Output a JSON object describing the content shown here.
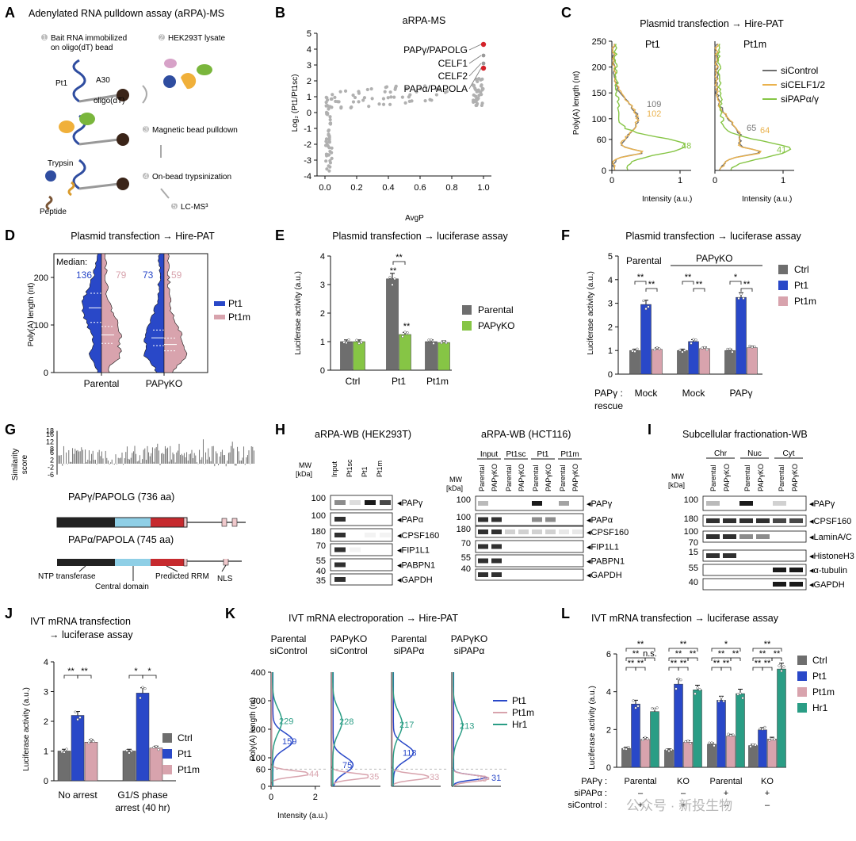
{
  "colors": {
    "blue": "#2948c8",
    "pink": "#d8a3ad",
    "green": "#7ab63c",
    "gray": "#6e6e6e",
    "orange": "#eab24d",
    "teal": "#2a9d85",
    "ltgreen": "#86c545",
    "red": "#d4222a"
  },
  "panelA": {
    "letter": "A",
    "title": "Adenylated RNA pulldown assay (aRPA)-MS",
    "steps": [
      "Bait RNA immobilized",
      "on oligo(dT) bead",
      "HEK293T lysate",
      "Magnetic bead pulldown",
      "On-bead trypsinization",
      "LC-MS³"
    ],
    "nums": [
      "1",
      "2",
      "3",
      "4",
      "5"
    ],
    "labels": {
      "pt1": "Pt1",
      "a30": "A30",
      "oligo": "oligo(dT)",
      "trypsin": "Trypsin",
      "peptide": "Peptide"
    }
  },
  "panelB": {
    "letter": "B",
    "title": "aRPA-MS",
    "xlabel": "AvgP",
    "ylabel": "Log₂ (Pt1/Pt1sc)",
    "annotations": [
      "PAPγ/PAPOLG",
      "CELF1",
      "CELF2",
      "PAPα/PAPOLA"
    ]
  },
  "panelC": {
    "letter": "C",
    "title": "Plasmid transfection → Hire-PAT",
    "sub1": "Pt1",
    "sub2": "Pt1m",
    "ylabel": "Poly(A) length (nt)",
    "xlabel": "Intensity (a.u.)",
    "legend": [
      "siControl",
      "siCELF1/2",
      "siPAPα/γ"
    ],
    "ann1": [
      "109",
      "102",
      "48"
    ],
    "ann2": [
      "65",
      "64",
      "41"
    ]
  },
  "panelD": {
    "letter": "D",
    "title": "Plasmid transfection → Hire-PAT",
    "ylabel": "Poly(A) length (nt)",
    "median_label": "Median:",
    "medians": [
      "136",
      "79",
      "73",
      "59"
    ],
    "legend": [
      "Pt1",
      "Pt1m"
    ]
  },
  "panelE": {
    "letter": "E",
    "title": "Plasmid transfection → luciferase assay",
    "ylabel": "Luciferase activity (a.u.)",
    "legend": [
      "Parental",
      "PAPγKO"
    ],
    "stars": "**"
  },
  "panelF": {
    "letter": "F",
    "title": "Plasmid transfection → luciferase assay",
    "ylabel": "Luciferase activity (a.u.)",
    "groups": [
      "Parental",
      "PAPγKO"
    ],
    "rescue_label": "PAPγ :",
    "rescue_label2": "rescue",
    "legend": [
      "Ctrl",
      "Pt1",
      "Pt1m"
    ],
    "stars": "**",
    "star1": "*"
  },
  "panelG": {
    "letter": "G",
    "ylabel": "Similarity score",
    "prot1": "PAPγ/PAPOLG (736 aa)",
    "prot2": "PAPα/PAPOLA (745 aa)",
    "domains": [
      "NTP transferase",
      "Central domain",
      "Predicted RRM",
      "NLS"
    ]
  },
  "panelH": {
    "letter": "H",
    "title1": "aRPA-WB (HEK293T)",
    "title2": "aRPA-WB (HCT116)",
    "mw": "MW",
    "kda": "[kDa]",
    "lanes1": [
      "Input",
      "Pt1sc",
      "Pt1",
      "Pt1m"
    ],
    "groups2": [
      "Input",
      "Pt1sc",
      "Pt1",
      "Pt1m"
    ],
    "lanes2": [
      "Parental",
      "PAPγKO"
    ],
    "proteins": [
      "PAPγ",
      "PAPα",
      "CPSF160",
      "FIP1L1",
      "PABPN1",
      "GAPDH"
    ],
    "markers1": [
      "100",
      "100",
      "180",
      "70",
      "55",
      "40",
      "35"
    ],
    "markers2": [
      "100",
      "100",
      "180",
      "70",
      "55",
      "40"
    ]
  },
  "panelI": {
    "letter": "I",
    "title": "Subcellular fractionation-WB",
    "mw": "MW",
    "kda": "[kDa]",
    "groups": [
      "Chr",
      "Nuc",
      "Cyt"
    ],
    "lanes": [
      "Parental",
      "PAPγKO"
    ],
    "proteins": [
      "PAPγ",
      "CPSF160",
      "LaminA/C",
      "HistoneH3",
      "α-tubulin",
      "GAPDH"
    ],
    "markers": [
      "100",
      "180",
      "100",
      "70",
      "15",
      "55",
      "40"
    ]
  },
  "panelJ": {
    "letter": "J",
    "title1": "IVT mRNA transfection",
    "title2": "→ luciferase assay",
    "ylabel": "Luciferase activity (a.u.)",
    "groups": [
      "No arrest",
      "G1/S phase",
      "arrest (40 hr)"
    ],
    "legend": [
      "Ctrl",
      "Pt1",
      "Pt1m"
    ],
    "stars": "**",
    "star1": "*"
  },
  "panelK": {
    "letter": "K",
    "title": "IVT mRNA electroporation → Hire-PAT",
    "ylabel": "Poly(A) length (nt)",
    "xlabel": "Intensity (a.u.)",
    "subs": [
      [
        "Parental",
        "siControl"
      ],
      [
        "PAPγKO",
        "siControl"
      ],
      [
        "Parental",
        "siPAPα"
      ],
      [
        "PAPγKO",
        "siPAPα"
      ]
    ],
    "legend": [
      "Pt1",
      "Pt1m",
      "Hr1"
    ],
    "ann": [
      [
        "229",
        "159",
        "44"
      ],
      [
        "228",
        "75",
        "35"
      ],
      [
        "217",
        "118",
        "33"
      ],
      [
        "213",
        "31",
        "28"
      ]
    ]
  },
  "panelL": {
    "letter": "L",
    "title": "IVT mRNA transfection → luciferase assay",
    "ylabel": "Luciferase activity (a.u.)",
    "legend": [
      "Ctrl",
      "Pt1",
      "Pt1m",
      "Hr1"
    ],
    "stars": "**",
    "ns": "n.s.",
    "star1": "*",
    "row1": [
      "PAPγ :",
      "Parental",
      "KO",
      "Parental",
      "KO"
    ],
    "row2": [
      "siPAPα :",
      "–",
      "–",
      "+",
      "+"
    ],
    "row3": [
      "siControl :",
      "+",
      "+",
      "–",
      "–"
    ]
  },
  "watermark": "公众号 · 新投生物",
  "chart_data": [
    {
      "panel": "B",
      "type": "scatter",
      "title": "aRPA-MS",
      "xlabel": "AvgP",
      "ylabel": "Log2 (Pt1/Pt1sc)",
      "xlim": [
        -0.05,
        1.05
      ],
      "ylim": [
        -4,
        5
      ],
      "x_ticks": [
        "0.0",
        "0.2",
        "0.4",
        "0.6",
        "0.8",
        "1.0"
      ],
      "y_ticks": [
        "-4",
        "-3",
        "-2",
        "-1",
        "0",
        "1",
        "2",
        "3",
        "4",
        "5"
      ],
      "highlighted": [
        {
          "name": "PAPγ/PAPOLG",
          "x": 1.0,
          "y": 4.3
        },
        {
          "name": "PAPα/PAPOLA",
          "x": 1.0,
          "y": 2.8
        }
      ],
      "labeled": [
        {
          "name": "CELF1",
          "x": 1.0,
          "y": 3.6
        },
        {
          "name": "CELF2",
          "x": 1.0,
          "y": 3.1
        }
      ]
    },
    {
      "panel": "E",
      "type": "bar",
      "title": "Plasmid transfection → luciferase assay",
      "ylabel": "Luciferase activity (a.u.)",
      "categories": [
        "Ctrl",
        "Pt1",
        "Pt1m"
      ],
      "ylim": [
        0,
        4
      ],
      "y_ticks": [
        "0",
        "1",
        "2",
        "3",
        "4"
      ],
      "series": [
        {
          "name": "Parental",
          "values": [
            1.0,
            3.2,
            1.0
          ]
        },
        {
          "name": "PAPγKO",
          "values": [
            1.0,
            1.25,
            0.97
          ]
        }
      ]
    },
    {
      "panel": "F",
      "type": "bar",
      "title": "Plasmid transfection → luciferase assay",
      "ylabel": "Luciferase activity (a.u.)",
      "categories": [
        "Mock",
        "Mock",
        "PAPγ"
      ],
      "ylim": [
        0,
        5
      ],
      "y_ticks": [
        "0",
        "1",
        "2",
        "3",
        "4",
        "5"
      ],
      "series": [
        {
          "name": "Ctrl",
          "values": [
            1.0,
            1.0,
            1.0
          ]
        },
        {
          "name": "Pt1",
          "values": [
            2.95,
            1.38,
            3.25
          ]
        },
        {
          "name": "Pt1m",
          "values": [
            1.05,
            1.08,
            1.12
          ]
        }
      ]
    },
    {
      "panel": "J",
      "type": "bar",
      "title": "IVT mRNA transfection → luciferase assay",
      "ylabel": "Luciferase activity (a.u.)",
      "categories": [
        "No arrest",
        "G1/S phase arrest (40 hr)"
      ],
      "ylim": [
        0,
        4
      ],
      "y_ticks": [
        "0",
        "1",
        "2",
        "3",
        "4"
      ],
      "series": [
        {
          "name": "Ctrl",
          "values": [
            1.0,
            1.0
          ]
        },
        {
          "name": "Pt1",
          "values": [
            2.2,
            2.95
          ]
        },
        {
          "name": "Pt1m",
          "values": [
            1.3,
            1.1
          ]
        }
      ]
    },
    {
      "panel": "L",
      "type": "bar",
      "title": "IVT mRNA transfection → luciferase assay",
      "ylabel": "Luciferase activity (a.u.)",
      "categories": [
        "Parental",
        "KO",
        "Parental",
        "KO"
      ],
      "ylim": [
        0,
        6
      ],
      "y_ticks": [
        "0",
        "2",
        "4",
        "6"
      ],
      "series": [
        {
          "name": "Ctrl",
          "values": [
            1.0,
            0.92,
            1.22,
            1.15
          ]
        },
        {
          "name": "Pt1",
          "values": [
            3.35,
            4.4,
            3.55,
            1.98
          ]
        },
        {
          "name": "Pt1m",
          "values": [
            1.48,
            1.33,
            1.65,
            1.5
          ]
        },
        {
          "name": "Hr1",
          "values": [
            2.95,
            4.1,
            3.9,
            5.2
          ]
        }
      ]
    },
    {
      "panel": "D",
      "type": "area",
      "title": "Plasmid transfection → Hire-PAT",
      "ylabel": "Poly(A) length (nt)",
      "categories": [
        "Parental",
        "PAPγKO"
      ],
      "ylim": [
        0,
        250
      ],
      "y_ticks": [
        "0",
        "100",
        "200"
      ],
      "series": [
        {
          "name": "Pt1",
          "values": [
            136,
            73
          ]
        },
        {
          "name": "Pt1m",
          "values": [
            79,
            59
          ]
        }
      ]
    },
    {
      "panel": "C",
      "type": "line",
      "title": "Plasmid transfection → Hire-PAT",
      "xlabel": "Intensity (a.u.)",
      "ylabel": "Poly(A) length (nt)",
      "ylim": [
        0,
        250
      ],
      "y_ticks": [
        "0",
        "60",
        "100",
        "150",
        "200",
        "250"
      ],
      "x_ticks": [
        "0",
        "1"
      ],
      "series": [
        {
          "name": "siControl"
        },
        {
          "name": "siCELF1/2"
        },
        {
          "name": "siPAPα/γ"
        }
      ]
    },
    {
      "panel": "K",
      "type": "line",
      "title": "IVT mRNA electroporation → Hire-PAT",
      "xlabel": "Intensity (a.u.)",
      "ylabel": "Poly(A) length (nt)",
      "ylim": [
        0,
        400
      ],
      "y_ticks": [
        "0",
        "60",
        "100",
        "200",
        "300",
        "400"
      ],
      "x_ticks": [
        "0",
        "2"
      ],
      "series": [
        {
          "name": "Pt1"
        },
        {
          "name": "Pt1m"
        },
        {
          "name": "Hr1"
        }
      ]
    }
  ]
}
